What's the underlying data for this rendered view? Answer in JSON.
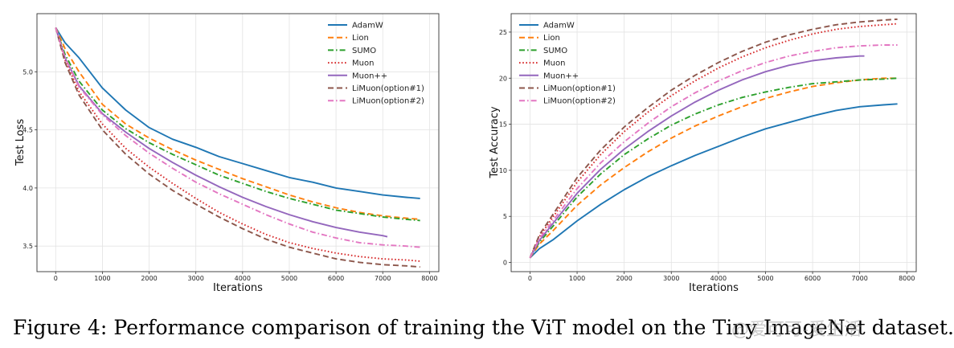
{
  "caption": "Figure 4: Performance comparison of training the ViT model on the Tiny ImageNet dataset.",
  "watermark": "@爱可可-爱生活",
  "colors": {
    "AdamW": "#1f77b4",
    "Lion": "#ff7f0e",
    "SUMO": "#2ca02c",
    "Muon": "#d62728",
    "Muon++": "#9467bd",
    "LiMuon(option#1)": "#8c564b",
    "LiMuon(option#2)": "#e377c2"
  },
  "chart_data": [
    {
      "type": "line",
      "xlabel": "Iterations",
      "ylabel": "Test Loss",
      "xlim": [
        -400,
        8200
      ],
      "ylim": [
        3.28,
        5.5
      ],
      "xticks": [
        "0",
        "1000",
        "2000",
        "3000",
        "4000",
        "5000",
        "6000",
        "7000",
        "8000"
      ],
      "yticks": [
        "3.5",
        "4.0",
        "4.5",
        "5.0"
      ],
      "grid": true,
      "legend": "top-right",
      "series": [
        {
          "name": "AdamW",
          "style": "solid",
          "x": [
            0,
            200,
            500,
            1000,
            1500,
            2000,
            2500,
            3000,
            3500,
            4000,
            4500,
            5000,
            5500,
            6000,
            6500,
            7000,
            7500,
            7800
          ],
          "values": [
            5.38,
            5.25,
            5.12,
            4.86,
            4.67,
            4.52,
            4.42,
            4.35,
            4.27,
            4.21,
            4.15,
            4.09,
            4.05,
            4.0,
            3.97,
            3.94,
            3.92,
            3.91
          ]
        },
        {
          "name": "Lion",
          "style": "dashed",
          "x": [
            0,
            200,
            500,
            1000,
            1500,
            2000,
            2500,
            3000,
            3500,
            4000,
            4500,
            5000,
            5500,
            6000,
            6500,
            7000,
            7500,
            7800
          ],
          "values": [
            5.38,
            5.2,
            5.0,
            4.72,
            4.55,
            4.43,
            4.33,
            4.24,
            4.16,
            4.08,
            4.01,
            3.94,
            3.88,
            3.83,
            3.79,
            3.76,
            3.74,
            3.73
          ]
        },
        {
          "name": "SUMO",
          "style": "dashdot",
          "x": [
            0,
            200,
            500,
            1000,
            1500,
            2000,
            2500,
            3000,
            3500,
            4000,
            4500,
            5000,
            5500,
            6000,
            6500,
            7000,
            7500,
            7800
          ],
          "values": [
            5.38,
            5.15,
            4.92,
            4.67,
            4.51,
            4.39,
            4.29,
            4.2,
            4.11,
            4.04,
            3.97,
            3.91,
            3.86,
            3.81,
            3.78,
            3.75,
            3.73,
            3.72
          ]
        },
        {
          "name": "Muon",
          "style": "dotted",
          "x": [
            0,
            200,
            500,
            1000,
            1500,
            2000,
            2500,
            3000,
            3500,
            4000,
            4500,
            5000,
            5500,
            6000,
            6500,
            7000,
            7500,
            7800
          ],
          "values": [
            5.38,
            5.1,
            4.83,
            4.55,
            4.34,
            4.18,
            4.04,
            3.91,
            3.79,
            3.69,
            3.6,
            3.53,
            3.48,
            3.44,
            3.41,
            3.39,
            3.38,
            3.37
          ]
        },
        {
          "name": "Muon++",
          "style": "solid",
          "x": [
            0,
            200,
            500,
            1000,
            1500,
            2000,
            2500,
            3000,
            3500,
            4000,
            4500,
            5000,
            5500,
            6000,
            6500,
            7000,
            7100
          ],
          "values": [
            5.38,
            5.12,
            4.88,
            4.64,
            4.48,
            4.34,
            4.22,
            4.11,
            4.01,
            3.92,
            3.84,
            3.77,
            3.71,
            3.66,
            3.62,
            3.59,
            3.58
          ]
        },
        {
          "name": "LiMuon(option#1)",
          "style": "dashed",
          "x": [
            0,
            200,
            500,
            1000,
            1500,
            2000,
            2500,
            3000,
            3500,
            4000,
            4500,
            5000,
            5500,
            6000,
            6500,
            7000,
            7500,
            7800
          ],
          "values": [
            5.38,
            5.08,
            4.8,
            4.5,
            4.29,
            4.12,
            3.98,
            3.86,
            3.75,
            3.65,
            3.56,
            3.49,
            3.44,
            3.39,
            3.36,
            3.34,
            3.33,
            3.32
          ]
        },
        {
          "name": "LiMuon(option#2)",
          "style": "dashdot",
          "x": [
            0,
            200,
            500,
            1000,
            1500,
            2000,
            2500,
            3000,
            3500,
            4000,
            4500,
            5000,
            5500,
            6000,
            6500,
            7000,
            7500,
            7800
          ],
          "values": [
            5.38,
            5.12,
            4.87,
            4.63,
            4.45,
            4.3,
            4.17,
            4.05,
            3.95,
            3.86,
            3.77,
            3.69,
            3.62,
            3.57,
            3.53,
            3.51,
            3.5,
            3.49
          ]
        }
      ]
    },
    {
      "type": "line",
      "xlabel": "Iterations",
      "ylabel": "Test Accuracy",
      "xlim": [
        -400,
        8200
      ],
      "ylim": [
        -1,
        27
      ],
      "xticks": [
        "0",
        "1000",
        "2000",
        "3000",
        "4000",
        "5000",
        "6000",
        "7000",
        "8000"
      ],
      "yticks": [
        "0",
        "5",
        "10",
        "15",
        "20",
        "25"
      ],
      "grid": true,
      "legend": "top-left",
      "series": [
        {
          "name": "AdamW",
          "style": "solid",
          "x": [
            0,
            200,
            500,
            1000,
            1500,
            2000,
            2500,
            3000,
            3500,
            4000,
            4500,
            5000,
            5500,
            6000,
            6500,
            7000,
            7500,
            7800
          ],
          "values": [
            0.5,
            1.5,
            2.5,
            4.5,
            6.3,
            7.9,
            9.3,
            10.5,
            11.6,
            12.6,
            13.6,
            14.5,
            15.2,
            15.9,
            16.5,
            16.9,
            17.1,
            17.2
          ]
        },
        {
          "name": "Lion",
          "style": "dashed",
          "x": [
            0,
            200,
            500,
            1000,
            1500,
            2000,
            2500,
            3000,
            3500,
            4000,
            4500,
            5000,
            5500,
            6000,
            6500,
            7000,
            7500,
            7800
          ],
          "values": [
            0.5,
            2.0,
            3.5,
            6.2,
            8.4,
            10.3,
            12.0,
            13.5,
            14.8,
            15.9,
            16.9,
            17.8,
            18.5,
            19.1,
            19.5,
            19.8,
            20.0,
            20.0
          ]
        },
        {
          "name": "SUMO",
          "style": "dashdot",
          "x": [
            0,
            200,
            500,
            1000,
            1500,
            2000,
            2500,
            3000,
            3500,
            4000,
            4500,
            5000,
            5500,
            6000,
            6500,
            7000,
            7500,
            7800
          ],
          "values": [
            0.5,
            2.2,
            4.0,
            7.1,
            9.6,
            11.7,
            13.4,
            14.9,
            16.1,
            17.1,
            17.9,
            18.5,
            19.0,
            19.4,
            19.6,
            19.8,
            19.9,
            20.0
          ]
        },
        {
          "name": "Muon",
          "style": "dotted",
          "x": [
            0,
            200,
            500,
            1000,
            1500,
            2000,
            2500,
            3000,
            3500,
            4000,
            4500,
            5000,
            5500,
            6000,
            6500,
            7000,
            7500,
            7800
          ],
          "values": [
            0.5,
            2.8,
            5.0,
            8.7,
            11.7,
            14.2,
            16.3,
            18.1,
            19.7,
            21.1,
            22.3,
            23.3,
            24.1,
            24.8,
            25.3,
            25.6,
            25.8,
            25.9
          ]
        },
        {
          "name": "Muon++",
          "style": "solid",
          "x": [
            0,
            200,
            500,
            1000,
            1500,
            2000,
            2500,
            3000,
            3500,
            4000,
            4500,
            5000,
            5500,
            6000,
            6500,
            7000,
            7100
          ],
          "values": [
            0.5,
            2.4,
            4.3,
            7.5,
            10.1,
            12.3,
            14.2,
            15.9,
            17.4,
            18.7,
            19.8,
            20.7,
            21.4,
            21.9,
            22.2,
            22.4,
            22.4
          ]
        },
        {
          "name": "LiMuon(option#1)",
          "style": "dashed",
          "x": [
            0,
            200,
            500,
            1000,
            1500,
            2000,
            2500,
            3000,
            3500,
            4000,
            4500,
            5000,
            5500,
            6000,
            6500,
            7000,
            7500,
            7800
          ],
          "values": [
            0.5,
            3.0,
            5.3,
            9.2,
            12.2,
            14.7,
            16.8,
            18.7,
            20.3,
            21.7,
            22.9,
            23.9,
            24.7,
            25.3,
            25.8,
            26.1,
            26.3,
            26.4
          ]
        },
        {
          "name": "LiMuon(option#2)",
          "style": "dashdot",
          "x": [
            0,
            200,
            500,
            1000,
            1500,
            2000,
            2500,
            3000,
            3500,
            4000,
            4500,
            5000,
            5500,
            6000,
            6500,
            7000,
            7500,
            7800
          ],
          "values": [
            0.5,
            2.6,
            4.6,
            8.0,
            10.8,
            13.1,
            15.1,
            16.9,
            18.4,
            19.7,
            20.8,
            21.7,
            22.4,
            22.9,
            23.3,
            23.5,
            23.6,
            23.6
          ]
        }
      ]
    }
  ]
}
